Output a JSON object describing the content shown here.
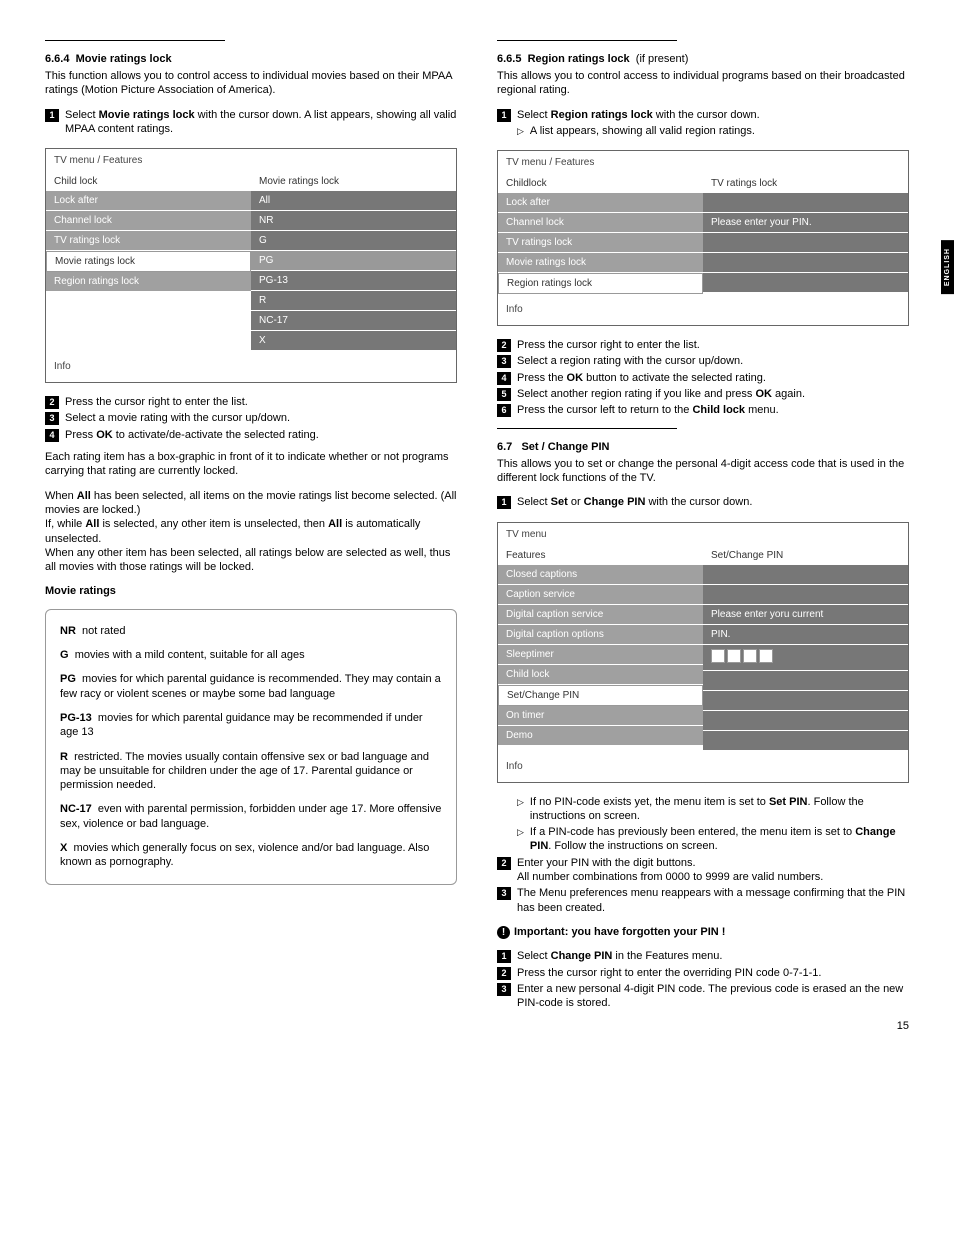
{
  "sideTab": "ENGLISH",
  "pageNum": "15",
  "left": {
    "s664": {
      "num": "6.6.4",
      "title": "Movie ratings lock",
      "desc": "This function allows you to control access to individual movies based on their MPAA ratings (Motion Picture Association of America).",
      "step1a": "Select ",
      "step1b": "Movie ratings lock",
      "step1c": " with the cursor down. A list appears, showing all valid MPAA content ratings.",
      "step2": "Press the cursor right to enter the list.",
      "step3": "Select a movie rating with the cursor up/down.",
      "step4a": "Press ",
      "step4b": "OK",
      "step4c": " to activate/de-activate the selected rating.",
      "para1": "Each rating item has a box-graphic in front of it to indicate whether or not programs carrying that rating are currently locked.",
      "para2a": "When ",
      "para2b": "All",
      "para2c": " has been selected, all items on the movie ratings list become selected. (All movies are locked.)",
      "para3a": "If, while ",
      "para3b": "All",
      "para3c": " is selected, any other item is unselected, then ",
      "para3d": "All",
      "para3e": " is automatically unselected.",
      "para4": "When any other item has been selected, all ratings below are selected as well, thus all movies with those ratings will be locked.",
      "ratingsTitle": "Movie ratings",
      "ratings": {
        "nr": {
          "code": "NR",
          "text": "not rated"
        },
        "g": {
          "code": "G",
          "text": "movies with a mild content, suitable for all ages"
        },
        "pg": {
          "code": "PG",
          "text": "movies for which parental guidance is recommended. They may contain a few racy or violent scenes or maybe some bad language"
        },
        "pg13": {
          "code": "PG-13",
          "text": "movies for which parental guidance may be recommended if under age 13"
        },
        "r": {
          "code": "R",
          "text": "restricted. The movies usually contain offensive sex or bad language and may be unsuitable for children under the age of 17. Parental guidance or permission needed."
        },
        "nc17": {
          "code": "NC-17",
          "text": "even with parental permission, forbidden under age 17. More offensive sex, violence or bad language."
        },
        "x": {
          "code": "X",
          "text": "movies which generally focus on sex, violence and/or bad language. Also known as pornography."
        }
      }
    },
    "menu1": {
      "title": "TV menu / Features",
      "leftHeader": "Child lock",
      "rightHeader": "Movie ratings lock",
      "leftItems": [
        "Lock after",
        "Channel lock",
        "TV ratings lock",
        "Movie ratings lock",
        "Region ratings lock"
      ],
      "rightItems": [
        "All",
        "NR",
        "G",
        "PG",
        "PG-13",
        "R",
        "NC-17",
        "X"
      ],
      "info": "Info"
    }
  },
  "right": {
    "s665": {
      "num": "6.6.5",
      "title": "Region ratings lock",
      "suffix": "(if present)",
      "desc": "This allows you to control access to individual programs based on their broadcasted regional rating.",
      "step1a": "Select ",
      "step1b": "Region ratings lock",
      "step1c": " with the cursor down.",
      "step1sub": "A list appears, showing all valid region ratings.",
      "step2": "Press the cursor right to enter the list.",
      "step3": "Select a region rating with the cursor up/down.",
      "step4a": "Press the ",
      "step4b": "OK",
      "step4c": " button to activate the selected rating.",
      "step5a": "Select another region rating if you like and press ",
      "step5b": "OK",
      "step5c": " again.",
      "step6a": "Press the cursor left to return to the ",
      "step6b": "Child lock",
      "step6c": " menu."
    },
    "menu2": {
      "title": "TV menu / Features",
      "leftHeader": "Childlock",
      "rightHeader": "TV ratings lock",
      "leftItems": [
        "Lock after",
        "Channel lock",
        "TV ratings lock",
        "Movie ratings lock",
        "Region ratings lock"
      ],
      "rightMsg": "Please enter your PIN.",
      "info": "Info"
    },
    "s67": {
      "num": "6.7",
      "title": "Set / Change PIN",
      "desc": "This allows you to set or change the personal 4-digit access code that is used in the different lock functions of the TV.",
      "step1a": "Select ",
      "step1b": "Set",
      "step1c": " or ",
      "step1d": "Change PIN",
      "step1e": " with the cursor down.",
      "sub1a": "If no PIN-code exists yet, the menu item is set to ",
      "sub1b": "Set PIN",
      "sub1c": ". Follow the instructions on screen.",
      "sub2a": "If a PIN-code has previously been entered, the menu item is set to ",
      "sub2b": "Change PIN",
      "sub2c": ". Follow the instructions on screen.",
      "step2": "Enter your PIN with the digit buttons.",
      "step2b": "All number combinations from 0000 to 9999 are valid numbers.",
      "step3": "The Menu preferences menu reappears with a message confirming that the PIN has been created.",
      "importantTitle": "Important: you have forgotten your PIN !",
      "f1a": "Select ",
      "f1b": "Change PIN",
      "f1c": " in the Features menu.",
      "f2": "Press the cursor right to enter the overriding PIN code 0-7-1-1.",
      "f3": "Enter a new personal 4-digit PIN code. The previous code is erased an the new PIN-code is stored."
    },
    "menu3": {
      "title": "TV menu",
      "leftHeader": "Features",
      "rightHeader": "Set/Change PIN",
      "leftItems": [
        "Closed captions",
        "Caption service",
        "Digital caption service",
        "Digital caption options",
        "Sleeptimer",
        "Child lock",
        "Set/Change PIN",
        "On timer",
        "Demo"
      ],
      "rightMsg1": "Please enter yoru current",
      "rightMsg2": "PIN.",
      "info": "Info"
    }
  }
}
